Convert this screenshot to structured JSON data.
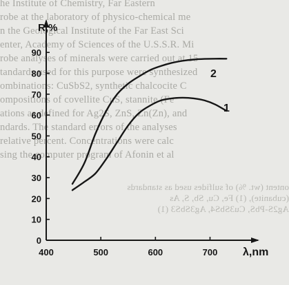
{
  "background_text": [
    "he Institute of Chemistry, Far Eastern",
    "robe at the laboratory of physico-chemical me",
    "n the Geological Institute of the Far East Sci",
    "enter, Academy of Sciences of the U.S.S.R. Mi",
    "robe analyses of minerals were carried out at 15",
    "tandards used for this purpose were synthesized",
    "ombinations: CuSbS2, synthetic chalcocite C",
    "ompositions of covellite CuS, stannite (Fe",
    "ations as defined for Ag2S, ZnS, Zn(Zn), and",
    "ndards. The standard errors of the analyses",
    "relative percent. Concentrations were calc",
    "sing the computer program of Afonin et al",
    "ontent (wt. %) of sulfides used as standards",
    "(cubanite), (1) Fe, Cu, Sb, S, As",
    "Ag2S-PbS, Cu3SbS4, Ag3SbS3 (1)"
  ],
  "chart_data": {
    "type": "line",
    "title": "",
    "xlabel": "λ,nm",
    "ylabel": "R,%",
    "xlim": [
      400,
      760
    ],
    "ylim": [
      0,
      95
    ],
    "x_ticks": [
      400,
      500,
      600,
      700
    ],
    "y_ticks": [
      0,
      10,
      20,
      30,
      40,
      50,
      60,
      70,
      80,
      90
    ],
    "grid": false,
    "series": [
      {
        "name": "1",
        "x": [
          448,
          470,
          490,
          510,
          530,
          550,
          570,
          590,
          610,
          630,
          650,
          670,
          690,
          710,
          730
        ],
        "y": [
          24,
          28,
          32,
          39,
          47,
          55,
          61,
          64.5,
          67,
          68,
          68.3,
          68,
          67,
          65,
          62
        ]
      },
      {
        "name": "2",
        "x": [
          448,
          470,
          490,
          510,
          530,
          550,
          570,
          590,
          610,
          630,
          650,
          670,
          690,
          710,
          730
        ],
        "y": [
          27,
          37,
          51,
          62,
          70,
          75,
          78.5,
          81.5,
          83.5,
          85,
          86,
          86.6,
          86.9,
          87,
          87
        ]
      }
    ],
    "curve_labels": [
      "1",
      "2"
    ]
  }
}
